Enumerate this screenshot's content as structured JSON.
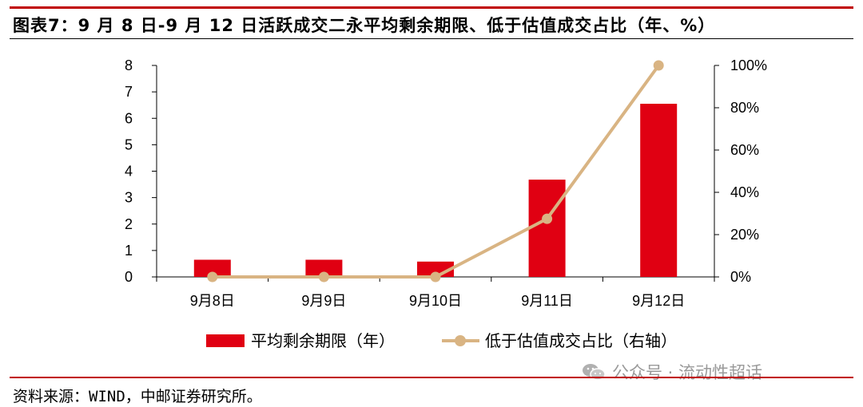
{
  "title": "图表7：9 月 8 日-9 月 12 日活跃成交二永平均剩余期限、低于估值成交占比（年、%）",
  "source": "资料来源：WIND，中邮证券研究所。",
  "watermark": {
    "text": "公众号 · 流动性超话",
    "icon": "wechat-icon"
  },
  "colors": {
    "bar": "#e00012",
    "line": "#d9b483",
    "accent_rule": "#c00000",
    "watermark": "#9a9a9a"
  },
  "chart_data": {
    "type": "bar",
    "categories": [
      "9月8日",
      "9月9日",
      "9月10日",
      "9月11日",
      "9月12日"
    ],
    "series": [
      {
        "name": "平均剩余期限（年）",
        "type": "bar",
        "axis": "left",
        "values": [
          0.65,
          0.65,
          0.58,
          3.68,
          6.55
        ]
      },
      {
        "name": "低于估值成交占比（右轴）",
        "type": "line",
        "axis": "right",
        "values": [
          0,
          0,
          0,
          27.5,
          100
        ]
      }
    ],
    "y_left": {
      "ylim": [
        0,
        8
      ],
      "ticks": [
        "0",
        "1",
        "2",
        "3",
        "4",
        "5",
        "6",
        "7",
        "8"
      ]
    },
    "y_right": {
      "ylim": [
        0,
        100
      ],
      "ticks": [
        "0%",
        "20%",
        "40%",
        "60%",
        "80%",
        "100%"
      ]
    },
    "grid": false,
    "legend_position": "bottom"
  }
}
